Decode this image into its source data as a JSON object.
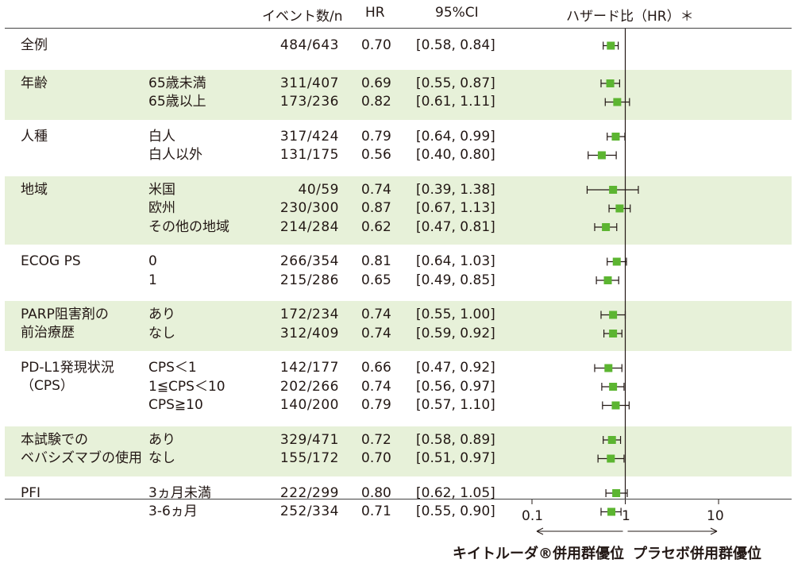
{
  "headers": {
    "events": "イベント数/n",
    "hr": "HR",
    "ci": "95%CI",
    "forest": "ハザード比（HR）＊"
  },
  "groups": [
    {
      "name": "全例",
      "shaded": false,
      "rows": [
        {
          "sub": "",
          "events": "484/643",
          "hr": "0.70",
          "ci": "[0.58, 0.84]"
        }
      ]
    },
    {
      "name": "年齢",
      "shaded": true,
      "rows": [
        {
          "sub": "65歳未満",
          "events": "311/407",
          "hr": "0.69",
          "ci": "[0.55, 0.87]"
        },
        {
          "sub": "65歳以上",
          "events": "173/236",
          "hr": "0.82",
          "ci": "[0.61, 1.11]"
        }
      ]
    },
    {
      "name": "人種",
      "shaded": false,
      "rows": [
        {
          "sub": "白人",
          "events": "317/424",
          "hr": "0.79",
          "ci": "[0.64, 0.99]"
        },
        {
          "sub": "白人以外",
          "events": "131/175",
          "hr": "0.56",
          "ci": "[0.40, 0.80]"
        }
      ]
    },
    {
      "name": "地域",
      "shaded": true,
      "rows": [
        {
          "sub": "米国",
          "events": "40/59",
          "hr": "0.74",
          "ci": "[0.39, 1.38]"
        },
        {
          "sub": "欧州",
          "events": "230/300",
          "hr": "0.87",
          "ci": "[0.67, 1.13]"
        },
        {
          "sub": "その他の地域",
          "events": "214/284",
          "hr": "0.62",
          "ci": "[0.47, 0.81]"
        }
      ]
    },
    {
      "name": "ECOG PS",
      "shaded": false,
      "rows": [
        {
          "sub": "0",
          "events": "266/354",
          "hr": "0.81",
          "ci": "[0.64, 1.03]"
        },
        {
          "sub": "1",
          "events": "215/286",
          "hr": "0.65",
          "ci": "[0.49, 0.85]"
        }
      ]
    },
    {
      "name": "PARP阻害剤の\n前治療歴",
      "shaded": true,
      "rows": [
        {
          "sub": "あり",
          "events": "172/234",
          "hr": "0.74",
          "ci": "[0.55, 1.00]"
        },
        {
          "sub": "なし",
          "events": "312/409",
          "hr": "0.74",
          "ci": "[0.59, 0.92]"
        }
      ]
    },
    {
      "name": "PD-L1発現状況\n（CPS）",
      "shaded": false,
      "rows": [
        {
          "sub": "CPS＜1",
          "events": "142/177",
          "hr": "0.66",
          "ci": "[0.47, 0.92]"
        },
        {
          "sub": "1≦CPS＜10",
          "events": "202/266",
          "hr": "0.74",
          "ci": "[0.56, 0.97]"
        },
        {
          "sub": "CPS≧10",
          "events": "140/200",
          "hr": "0.79",
          "ci": "[0.57, 1.10]"
        }
      ]
    },
    {
      "name": "本試験での\nベバシズマブの使用",
      "shaded": true,
      "rows": [
        {
          "sub": "あり",
          "events": "329/471",
          "hr": "0.72",
          "ci": "[0.58, 0.89]"
        },
        {
          "sub": "なし",
          "events": "155/172",
          "hr": "0.70",
          "ci": "[0.51, 0.97]"
        }
      ]
    },
    {
      "name": "PFI",
      "shaded": false,
      "rows": [
        {
          "sub": "3ヵ月未満",
          "events": "222/299",
          "hr": "0.80",
          "ci": "[0.62, 1.05]"
        },
        {
          "sub": "3-6ヵ月",
          "events": "252/334",
          "hr": "0.71",
          "ci": "[0.55, 0.90]"
        }
      ]
    }
  ],
  "axis": {
    "ticks": [
      "0.1",
      "1",
      "10"
    ],
    "scale": "log",
    "reference_line": 1
  },
  "footer": {
    "left": "キイトルーダ®併用群優位",
    "right": "プラセボ併用群優位"
  },
  "colors": {
    "marker": "#5cb531",
    "shade": "#e7f1d9",
    "line": "#231815"
  },
  "chart_data": {
    "type": "forest",
    "x_scale": "log",
    "xlim": [
      0.1,
      10
    ],
    "reference": 1,
    "points": [
      {
        "label": "全例",
        "hr": 0.7,
        "lo": 0.58,
        "hi": 0.84
      },
      {
        "label": "65歳未満",
        "hr": 0.69,
        "lo": 0.55,
        "hi": 0.87
      },
      {
        "label": "65歳以上",
        "hr": 0.82,
        "lo": 0.61,
        "hi": 1.11
      },
      {
        "label": "白人",
        "hr": 0.79,
        "lo": 0.64,
        "hi": 0.99
      },
      {
        "label": "白人以外",
        "hr": 0.56,
        "lo": 0.4,
        "hi": 0.8
      },
      {
        "label": "米国",
        "hr": 0.74,
        "lo": 0.39,
        "hi": 1.38
      },
      {
        "label": "欧州",
        "hr": 0.87,
        "lo": 0.67,
        "hi": 1.13
      },
      {
        "label": "その他の地域",
        "hr": 0.62,
        "lo": 0.47,
        "hi": 0.81
      },
      {
        "label": "0",
        "hr": 0.81,
        "lo": 0.64,
        "hi": 1.03
      },
      {
        "label": "1",
        "hr": 0.65,
        "lo": 0.49,
        "hi": 0.85
      },
      {
        "label": "あり",
        "hr": 0.74,
        "lo": 0.55,
        "hi": 1.0
      },
      {
        "label": "なし",
        "hr": 0.74,
        "lo": 0.59,
        "hi": 0.92
      },
      {
        "label": "CPS＜1",
        "hr": 0.66,
        "lo": 0.47,
        "hi": 0.92
      },
      {
        "label": "1≦CPS＜10",
        "hr": 0.74,
        "lo": 0.56,
        "hi": 0.97
      },
      {
        "label": "CPS≧10",
        "hr": 0.79,
        "lo": 0.57,
        "hi": 1.1
      },
      {
        "label": "あり",
        "hr": 0.72,
        "lo": 0.58,
        "hi": 0.89
      },
      {
        "label": "なし",
        "hr": 0.7,
        "lo": 0.51,
        "hi": 0.97
      },
      {
        "label": "3ヵ月未満",
        "hr": 0.8,
        "lo": 0.62,
        "hi": 1.05
      },
      {
        "label": "3-6ヵ月",
        "hr": 0.71,
        "lo": 0.55,
        "hi": 0.9
      }
    ]
  }
}
